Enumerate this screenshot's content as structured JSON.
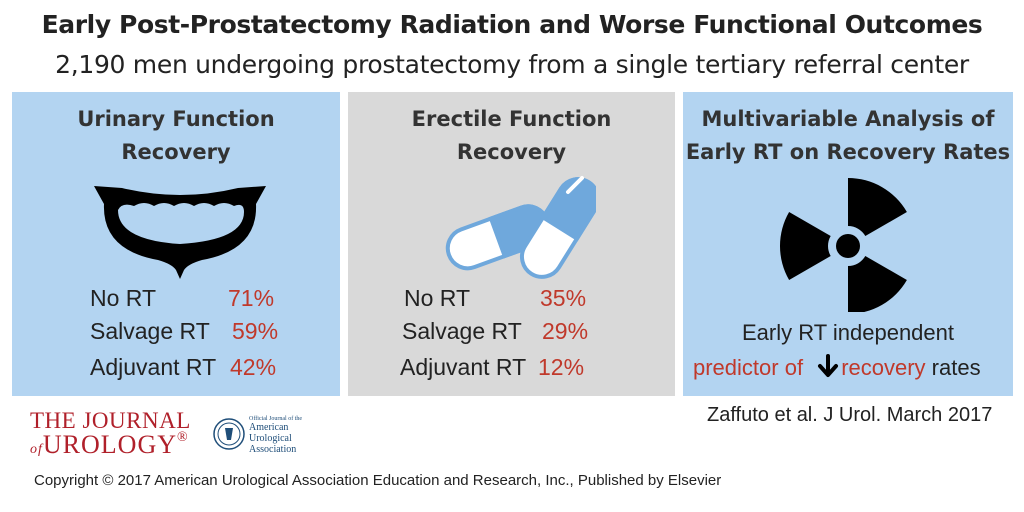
{
  "title": "Early Post-Prostatectomy Radiation and Worse Functional Outcomes",
  "subtitle": "2,190 men undergoing prostatectomy from a single tertiary referral center",
  "panels": {
    "urinary": {
      "title_line1": "Urinary Function",
      "title_line2": "Recovery",
      "icon": "bladder-icon",
      "rows": [
        {
          "label": "No RT",
          "value": "71%"
        },
        {
          "label": "Salvage RT",
          "value": "59%"
        },
        {
          "label": "Adjuvant RT",
          "value": "42%"
        }
      ]
    },
    "erectile": {
      "title_line1": "Erectile Function",
      "title_line2": "Recovery",
      "icon": "pills-icon",
      "rows": [
        {
          "label": "No RT",
          "value": "35%"
        },
        {
          "label": "Salvage RT",
          "value": "29%"
        },
        {
          "label": "Adjuvant RT",
          "value": "12%"
        }
      ]
    },
    "multivariable": {
      "title_line1": "Multivariable Analysis of",
      "title_line2": "Early RT on Recovery Rates",
      "icon": "radiation-icon",
      "note_line1": "Early RT independent",
      "note_predictor": "predictor of",
      "note_arrow_icon": "down-arrow-icon",
      "note_recovery": "recovery",
      "note_rates": "rates"
    }
  },
  "citation": "Zaffuto et al. J Urol. March 2017",
  "journal_logo": {
    "prefix": "THE JOURNAL",
    "of": "of",
    "name": "UROLOGY",
    "mark": "®"
  },
  "aua_logo": {
    "small": "Official Journal of the",
    "line1": "American",
    "line2": "Urological",
    "line3": "Association"
  },
  "copyright": "Copyright © 2017 American Urological Association Education and Research, Inc., Published by Elsevier",
  "colors": {
    "blue_panel": "#b3d4f1",
    "gray_panel": "#d9d9d9",
    "accent_red": "#c0392b",
    "pill_blue": "#6fa8dc"
  }
}
